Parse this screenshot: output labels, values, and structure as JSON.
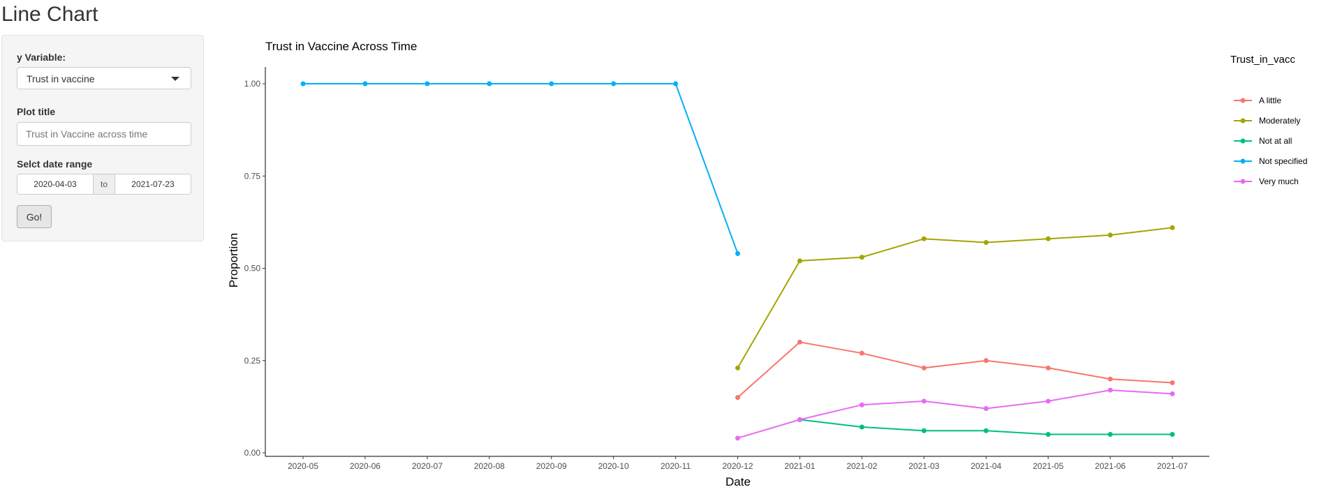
{
  "page": {
    "title": "Line Chart"
  },
  "sidebar": {
    "y_variable_label": "y Variable:",
    "y_variable_value": "Trust in vaccine",
    "plot_title_label": "Plot title",
    "plot_title_value": "Trust in Vaccine across time",
    "date_range_label": "Selct date range",
    "date_start": "2020-04-03",
    "date_separator": "to",
    "date_end": "2021-07-23",
    "go_label": "Go!"
  },
  "chart_data": {
    "type": "line",
    "title": "Trust in Vaccine Across Time",
    "xlabel": "Date",
    "ylabel": "Proportion",
    "x": [
      "2020-05",
      "2020-06",
      "2020-07",
      "2020-08",
      "2020-09",
      "2020-10",
      "2020-11",
      "2020-12",
      "2021-01",
      "2021-02",
      "2021-03",
      "2021-04",
      "2021-05",
      "2021-06",
      "2021-07"
    ],
    "ylim": [
      0,
      1
    ],
    "yticks": [
      "0.00",
      "0.25",
      "0.50",
      "0.75",
      "1.00"
    ],
    "legend_title": "Trust_in_vacc",
    "legend_position": "right",
    "grid": false,
    "series": [
      {
        "name": "A little",
        "color": "#F8766D",
        "values": [
          null,
          null,
          null,
          null,
          null,
          null,
          null,
          0.15,
          0.3,
          0.27,
          0.23,
          0.25,
          0.23,
          0.2,
          0.19
        ]
      },
      {
        "name": "Moderately",
        "color": "#A3A500",
        "values": [
          null,
          null,
          null,
          null,
          null,
          null,
          null,
          0.23,
          0.52,
          0.53,
          0.58,
          0.57,
          0.58,
          0.59,
          0.61
        ]
      },
      {
        "name": "Not at all",
        "color": "#00BF7D",
        "values": [
          null,
          null,
          null,
          null,
          null,
          null,
          null,
          null,
          0.09,
          0.07,
          0.06,
          0.06,
          0.05,
          0.05,
          0.05
        ]
      },
      {
        "name": "Not specified",
        "color": "#00B0F6",
        "values": [
          1.0,
          1.0,
          1.0,
          1.0,
          1.0,
          1.0,
          1.0,
          0.54,
          null,
          null,
          null,
          null,
          null,
          null,
          null
        ]
      },
      {
        "name": "Very much",
        "color": "#E76BF3",
        "values": [
          null,
          null,
          null,
          null,
          null,
          null,
          null,
          0.04,
          0.09,
          0.13,
          0.14,
          0.12,
          0.14,
          0.17,
          0.16
        ]
      }
    ]
  }
}
